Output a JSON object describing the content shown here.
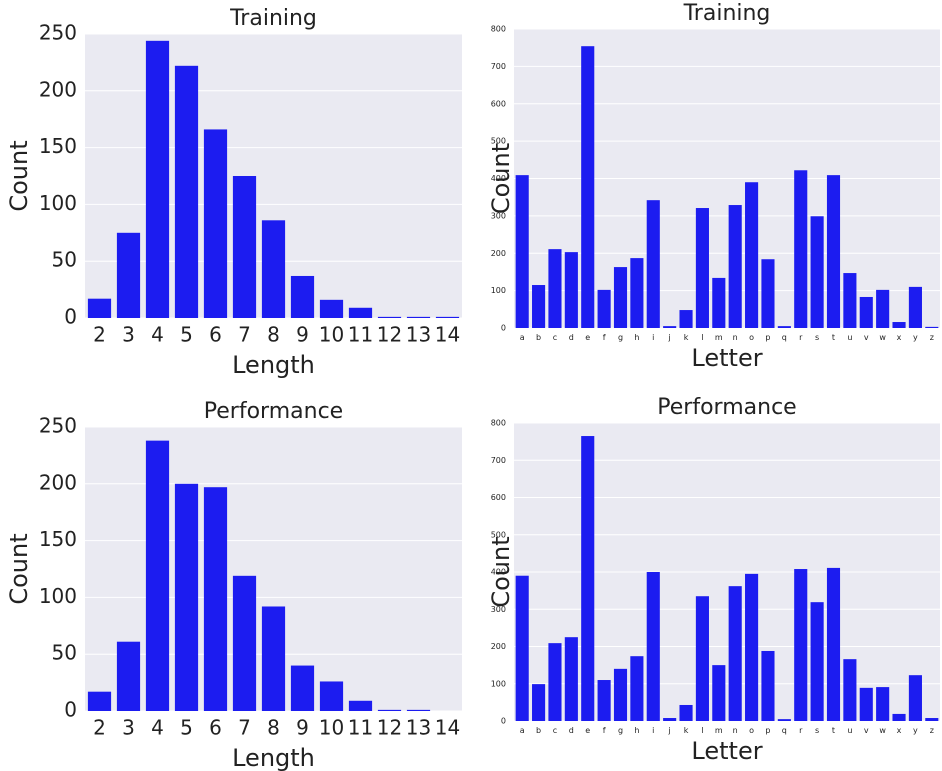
{
  "chart_data": [
    {
      "type": "bar",
      "title": "Training",
      "x_label": "Length",
      "y_label": "Count",
      "categories": [
        "2",
        "3",
        "4",
        "5",
        "6",
        "7",
        "8",
        "9",
        "10",
        "11",
        "12",
        "13",
        "14"
      ],
      "values": [
        17,
        75,
        244,
        222,
        166,
        125,
        86,
        37,
        16,
        9,
        1,
        1,
        1
      ],
      "color": "#1c1cf0",
      "ylim": [
        0,
        250
      ],
      "yticks": [
        0,
        50,
        100,
        150,
        200,
        250
      ],
      "grid": true
    },
    {
      "type": "bar",
      "title": "Training",
      "x_label": "Letter",
      "y_label": "Count",
      "categories": [
        "a",
        "b",
        "c",
        "d",
        "e",
        "f",
        "g",
        "h",
        "i",
        "j",
        "k",
        "l",
        "m",
        "n",
        "o",
        "p",
        "q",
        "r",
        "s",
        "t",
        "u",
        "v",
        "w",
        "x",
        "y",
        "z"
      ],
      "values": [
        409,
        115,
        211,
        203,
        754,
        102,
        163,
        187,
        342,
        5,
        48,
        321,
        134,
        329,
        390,
        184,
        5,
        422,
        299,
        409,
        147,
        83,
        102,
        16,
        110,
        3
      ],
      "color": "#1c1cf0",
      "ylim": [
        0,
        800
      ],
      "yticks": [
        0,
        100,
        200,
        300,
        400,
        500,
        600,
        700,
        800
      ],
      "grid": true
    },
    {
      "type": "bar",
      "title": "Performance",
      "x_label": "Length",
      "y_label": "Count",
      "categories": [
        "2",
        "3",
        "4",
        "5",
        "6",
        "7",
        "8",
        "9",
        "10",
        "11",
        "12",
        "13",
        "14"
      ],
      "values": [
        17,
        61,
        238,
        200,
        197,
        119,
        92,
        40,
        26,
        9,
        1,
        1,
        0
      ],
      "color": "#1c1cf0",
      "ylim": [
        0,
        250
      ],
      "yticks": [
        0,
        50,
        100,
        150,
        200,
        250
      ],
      "grid": true
    },
    {
      "type": "bar",
      "title": "Performance",
      "x_label": "Letter",
      "y_label": "Count",
      "categories": [
        "a",
        "b",
        "c",
        "d",
        "e",
        "f",
        "g",
        "h",
        "i",
        "j",
        "k",
        "l",
        "m",
        "n",
        "o",
        "p",
        "q",
        "r",
        "s",
        "t",
        "u",
        "v",
        "w",
        "x",
        "y",
        "z"
      ],
      "values": [
        390,
        99,
        209,
        225,
        765,
        110,
        140,
        174,
        400,
        8,
        43,
        335,
        150,
        362,
        395,
        188,
        5,
        408,
        319,
        411,
        166,
        89,
        91,
        19,
        123,
        8
      ],
      "color": "#1c1cf0",
      "ylim": [
        0,
        800
      ],
      "yticks": [
        0,
        100,
        200,
        300,
        400,
        500,
        600,
        700,
        800
      ],
      "grid": true
    }
  ]
}
